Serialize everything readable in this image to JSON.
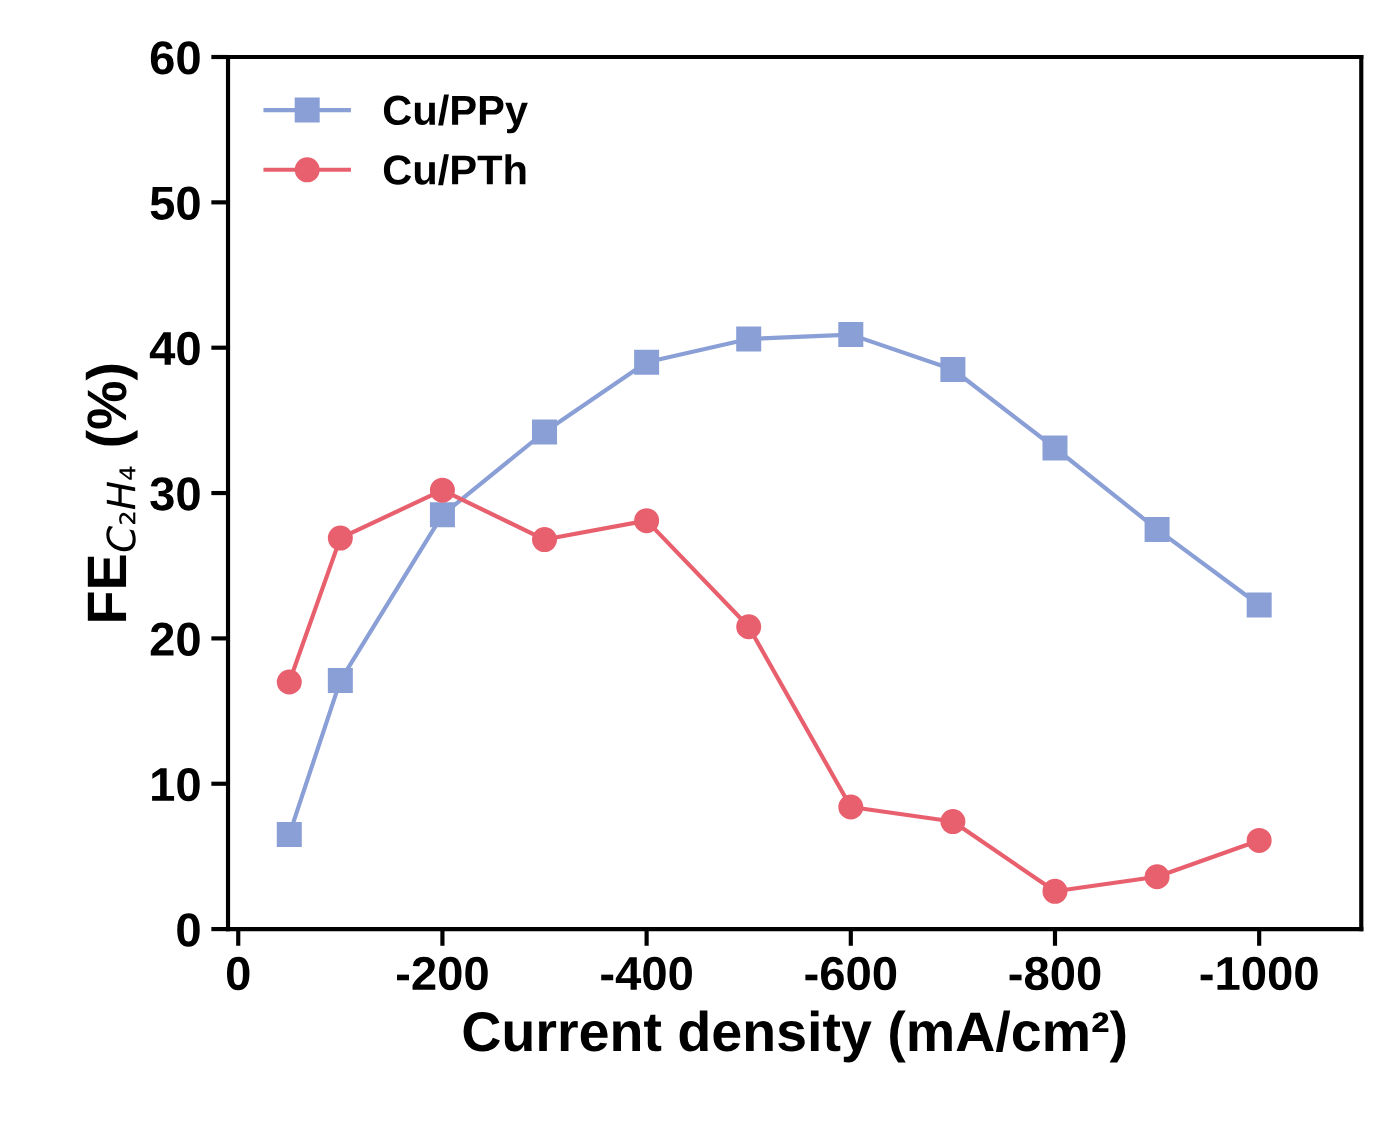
{
  "chart_data": {
    "type": "line",
    "xlabel": "Current density (mA/cm²)",
    "ylabel": "FE$_{C₂H₄}$ (%)",
    "x": [
      -50,
      -100,
      -200,
      -300,
      -400,
      -500,
      -600,
      -700,
      -800,
      -900,
      -1000
    ],
    "xlim": [
      10,
      -1100
    ],
    "xticks": [
      0,
      -200,
      -400,
      -600,
      -800,
      -1000
    ],
    "ylim": [
      0,
      60
    ],
    "yticks": [
      0,
      10,
      20,
      30,
      40,
      50,
      60
    ],
    "series": [
      {
        "name": "Cu/PPy",
        "color": "#8a9fd6",
        "marker": "square",
        "values": [
          6.5,
          17.1,
          28.5,
          34.2,
          39.0,
          40.6,
          40.9,
          38.5,
          33.1,
          27.5,
          22.3
        ]
      },
      {
        "name": "Cu/PTh",
        "color": "#e8606e",
        "marker": "circle",
        "values": [
          17.0,
          26.9,
          30.2,
          26.8,
          28.1,
          20.8,
          8.4,
          7.4,
          2.6,
          3.6,
          6.1
        ]
      }
    ],
    "legend": "top left",
    "grid": false,
    "line_style": "solid"
  }
}
